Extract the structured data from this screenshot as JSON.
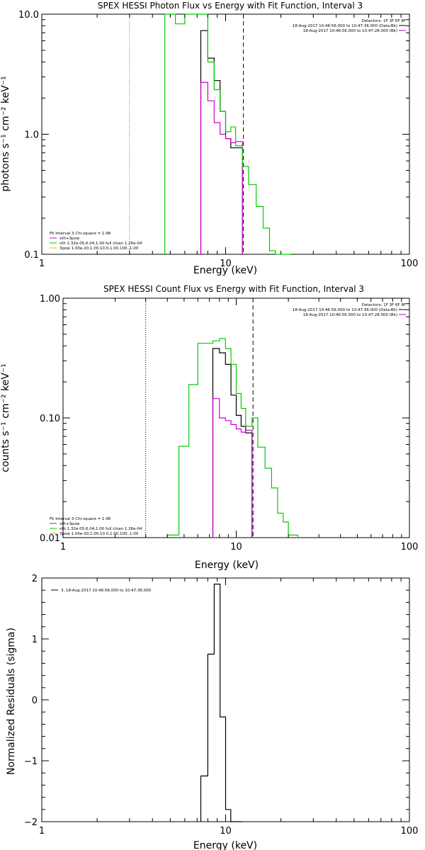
{
  "chart_data": [
    {
      "type": "line",
      "title": "SPEX HESSI Photon Flux vs Energy with Fit Function, Interval 3",
      "xlabel": "Energy (keV)",
      "ylabel": "photons s⁻¹ cm⁻² keV⁻¹",
      "xscale": "log",
      "yscale": "log",
      "xlim": [
        1,
        100
      ],
      "ylim": [
        0.1,
        10
      ],
      "xticks": [
        "1",
        "10",
        "100"
      ],
      "yticks": [
        "0.1",
        "1.0",
        "10.0"
      ],
      "legend_topright": {
        "header": "Detectors: 1F 3F 6F 8F",
        "entries": [
          {
            "text": "18-Aug-2017 10:46:56.000 to 10:47:36.000 (Data-Bk)",
            "color": "#000000"
          },
          {
            "text": "18-Aug-2017 10:46:56.000 to 10:47:28.000 (Bk)",
            "color": "#cc00cc"
          }
        ]
      },
      "legend_bottomleft": {
        "header": "Fit Interval 3   Chi-square = 1.48",
        "entries": [
          {
            "text": "vth+3pow",
            "color": "#cc00cc"
          },
          {
            "text": "vth 1.32e-05,6.04,1.00  full chian 1.26e-04",
            "color": "#00cc00"
          },
          {
            "text": "3pow 1.00e-20,1.00,10.0,1.00,100.,1.00",
            "color": "#e6b800"
          }
        ]
      },
      "vlines": [
        {
          "x": 3.0,
          "style": "dotted",
          "color": "#00aa00"
        },
        {
          "x": 12.5,
          "style": "dashed",
          "color": "#000000"
        }
      ],
      "series": [
        {
          "name": "Data-Bk",
          "color": "#000000",
          "step": true,
          "edges": [
            7.33,
            8.0,
            8.67,
            9.33,
            10.0,
            10.67,
            11.33,
            12.33
          ],
          "values": [
            7.3,
            4.3,
            2.8,
            1.55,
            0.92,
            0.77,
            0.77
          ]
        },
        {
          "name": "Bk",
          "color": "#cc00cc",
          "step": true,
          "edges": [
            7.33,
            8.0,
            8.67,
            9.33,
            10.0,
            10.67,
            11.33,
            12.33
          ],
          "values": [
            2.7,
            1.9,
            1.25,
            1.0,
            0.92,
            0.85,
            0.87
          ]
        },
        {
          "name": "vth+3pow",
          "color": "#00cc00",
          "step": true,
          "edges": [
            4.67,
            5.33,
            6.0,
            6.67,
            7.33,
            8.0,
            8.67,
            9.33,
            10.0,
            10.67,
            11.33,
            12.33,
            13.33,
            14.67,
            16.0,
            17.33,
            18.67,
            20.0,
            21.33,
            22.67
          ],
          "values": [
            10.0,
            8.3,
            10.0,
            10.0,
            10.0,
            4.0,
            2.35,
            1.55,
            1.05,
            1.15,
            0.8,
            0.54,
            0.38,
            0.25,
            0.165,
            0.107,
            0.1,
            0.1,
            0.1
          ]
        }
      ]
    },
    {
      "type": "line",
      "title": "SPEX HESSI Count Flux vs Energy with Fit Function, Interval 3",
      "xlabel": "Energy (keV)",
      "ylabel": "counts s⁻¹ cm⁻² keV⁻¹",
      "xscale": "log",
      "yscale": "log",
      "xlim": [
        1,
        100
      ],
      "ylim": [
        0.01,
        1.0
      ],
      "xticks": [
        "1",
        "10",
        "100"
      ],
      "yticks": [
        "0.01",
        "0.10",
        "1.00"
      ],
      "legend_topright": {
        "header": "Detectors: 1F 3F 6F 8F",
        "entries": [
          {
            "text": "18-Aug-2017 10:46:56.000 to 10:47:36.000 (Data-Bk)",
            "color": "#000000"
          },
          {
            "text": "18-Aug-2017 10:46:56.000 to 10:47:28.000 (Bk)",
            "color": "#cc00cc"
          }
        ]
      },
      "legend_bottomleft": {
        "header": "Fit Interval 3   Chi-square = 1.48",
        "entries": [
          {
            "text": "vth+3pow",
            "color": "#cc00cc"
          },
          {
            "text": "vth 1.32e-05,6.04,1.00  full chian 1.26e-04",
            "color": "#00cc00"
          },
          {
            "text": "3pow 1.00e-20,1.00,10.0,1.00,100.,1.00",
            "color": "#e6b800"
          }
        ]
      },
      "vlines": [
        {
          "x": 3.0,
          "style": "dotted",
          "color": "#000000"
        },
        {
          "x": 12.5,
          "style": "dashed",
          "color": "#000000"
        }
      ],
      "series": [
        {
          "name": "Data-Bk",
          "color": "#000000",
          "step": true,
          "edges": [
            7.33,
            8.0,
            8.67,
            9.33,
            10.0,
            10.67,
            11.33,
            12.33
          ],
          "values": [
            0.38,
            0.35,
            0.28,
            0.155,
            0.105,
            0.085,
            0.075
          ]
        },
        {
          "name": "Bk",
          "color": "#cc00cc",
          "step": true,
          "edges": [
            7.33,
            8.0,
            8.67,
            9.33,
            10.0,
            10.67,
            11.33,
            12.33
          ],
          "values": [
            0.145,
            0.1,
            0.095,
            0.088,
            0.081,
            0.076,
            0.079
          ]
        },
        {
          "name": "vth+3pow",
          "color": "#00cc00",
          "step": true,
          "edges": [
            4.0,
            4.67,
            5.33,
            6.0,
            6.67,
            7.33,
            8.0,
            8.67,
            9.33,
            10.0,
            10.67,
            11.33,
            12.33,
            13.33,
            14.67,
            16.0,
            17.33,
            18.67,
            20.0,
            21.33,
            22.67
          ],
          "values": [
            0.0105,
            0.058,
            0.19,
            0.42,
            0.42,
            0.44,
            0.46,
            0.38,
            0.28,
            0.16,
            0.12,
            0.085,
            0.1,
            0.057,
            0.038,
            0.026,
            0.016,
            0.0135,
            0.0105,
            0.0105
          ]
        }
      ]
    },
    {
      "type": "line",
      "title": "",
      "xlabel": "Energy (keV)",
      "ylabel": "Normalized Residuals (sigma)",
      "xscale": "log",
      "yscale": "linear",
      "xlim": [
        1,
        100
      ],
      "ylim": [
        -2,
        2
      ],
      "xticks": [
        "1",
        "10",
        "100"
      ],
      "yticks": [
        "−2",
        "−1",
        "0",
        "1",
        "2"
      ],
      "legend_topleft": {
        "entries": [
          {
            "text": "3, 18-Aug-2017 10:46:56.000 to 10:47:36.000",
            "color": "#000000"
          }
        ]
      },
      "series": [
        {
          "name": "Residuals",
          "color": "#000000",
          "step": true,
          "edges": [
            7.33,
            8.0,
            8.67,
            9.33,
            10.0,
            10.67,
            11.33,
            12.33
          ],
          "values": [
            -1.25,
            0.75,
            1.9,
            -0.28,
            -1.8,
            -2.0,
            -2.0
          ]
        }
      ]
    }
  ]
}
